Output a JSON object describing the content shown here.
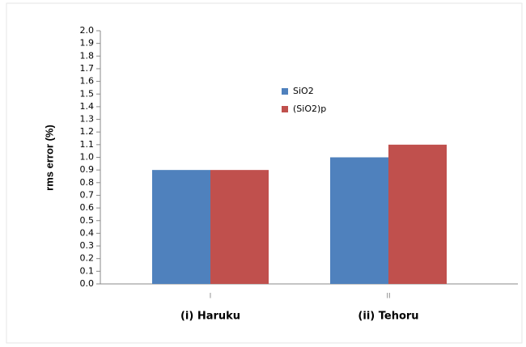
{
  "chart_data": {
    "type": "bar",
    "y_label": "rms error  (%)",
    "categories": [
      "I",
      "II"
    ],
    "category_names": [
      "(i) Haruku",
      "(ii) Tehoru"
    ],
    "series": [
      {
        "name": "SiO2",
        "color": "#4f81bd",
        "values": [
          0.9,
          1.0
        ]
      },
      {
        "name": "(SiO2)p",
        "color": "#c0504d",
        "values": [
          0.9,
          1.1
        ]
      }
    ],
    "ylim": [
      0,
      2
    ],
    "yticks": [
      {
        "value": 0,
        "label": "0.0"
      },
      0.1,
      0.2,
      0.3,
      0.4,
      0.5,
      0.6,
      0.7,
      0.8,
      0.9,
      {
        "value": 1,
        "label": "1.0"
      },
      1.1,
      1.2,
      1.3,
      1.4,
      1.5,
      1.6,
      1.7,
      1.8,
      1.9,
      {
        "value": 2,
        "label": "2.0"
      }
    ],
    "legend": "upper center"
  }
}
